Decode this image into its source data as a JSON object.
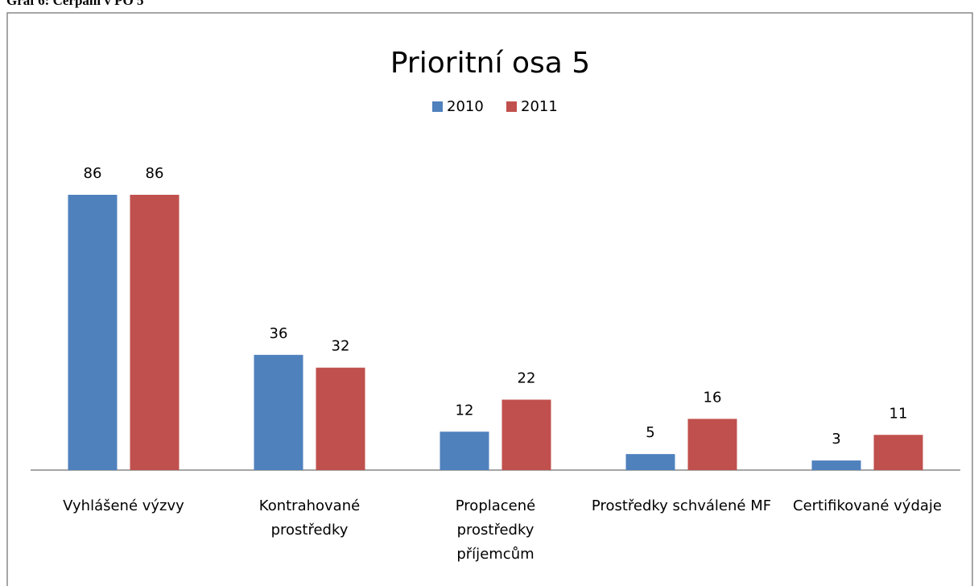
{
  "caption": "Graf 6: Čerpání v PO 5",
  "chart_data": {
    "type": "bar",
    "title": "Prioritní osa 5",
    "categories": [
      "Vyhlášené výzvy",
      "Kontrahované prostředky",
      "Proplacené prostředky příjemcům",
      "Prostředky schválené MF",
      "Certifikované výdaje"
    ],
    "series": [
      {
        "name": "2010",
        "color": "#4f81bd",
        "values": [
          86,
          36,
          12,
          5,
          3
        ]
      },
      {
        "name": "2011",
        "color": "#c0504d",
        "values": [
          86,
          32,
          22,
          16,
          11
        ]
      }
    ],
    "legend": "top"
  }
}
